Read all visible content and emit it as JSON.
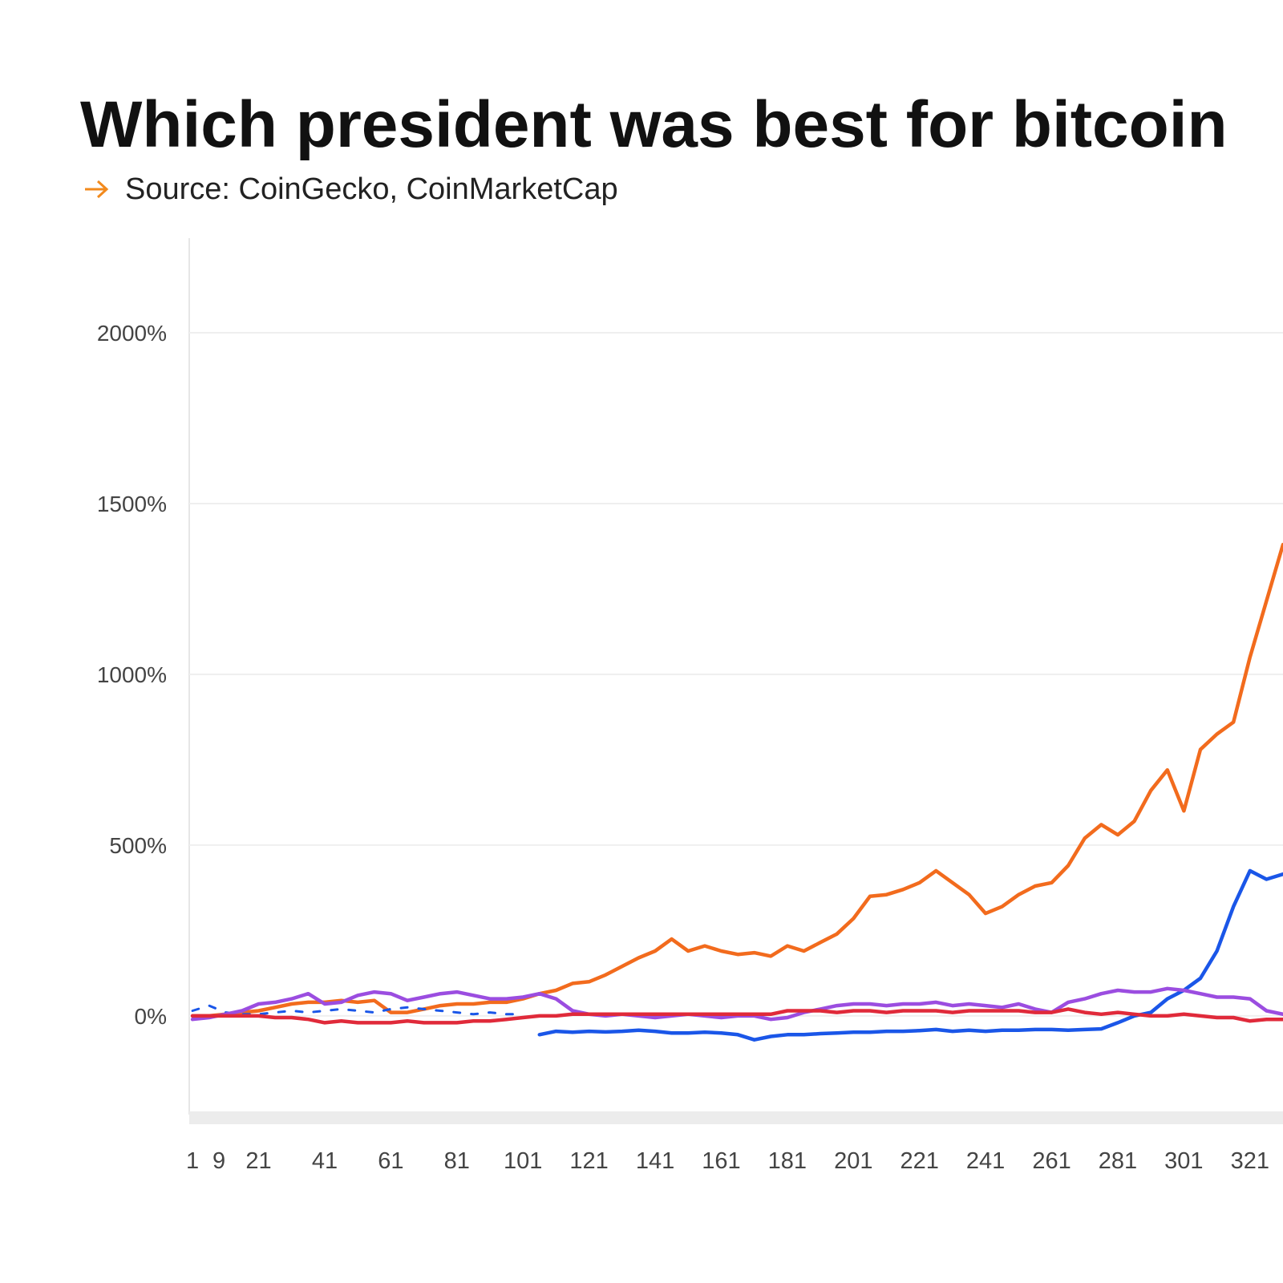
{
  "chart_data": {
    "type": "line",
    "title": "Which president was best for bitcoin",
    "subtitle": "Source: CoinGecko, CoinMarketCap",
    "x": [
      1,
      6,
      11,
      16,
      21,
      26,
      31,
      36,
      41,
      46,
      51,
      56,
      61,
      66,
      71,
      76,
      81,
      86,
      91,
      96,
      101,
      106,
      111,
      116,
      121,
      126,
      131,
      136,
      141,
      146,
      151,
      156,
      161,
      166,
      171,
      176,
      181,
      186,
      191,
      196,
      201,
      206,
      211,
      216,
      221,
      226,
      231,
      236,
      241,
      246,
      251,
      256,
      261,
      266,
      271,
      276,
      281,
      286,
      291,
      296,
      301,
      306,
      311,
      316,
      321,
      326,
      331
    ],
    "series": [
      {
        "color": "#f26b1d",
        "values": [
          0,
          0,
          5,
          10,
          15,
          25,
          35,
          40,
          40,
          45,
          40,
          45,
          10,
          10,
          20,
          30,
          35,
          35,
          40,
          40,
          50,
          65,
          75,
          95,
          100,
          120,
          145,
          170,
          190,
          225,
          190,
          205,
          190,
          180,
          185,
          175,
          205,
          190,
          215,
          240,
          285,
          350,
          355,
          370,
          390,
          425,
          390,
          355,
          300,
          320,
          355,
          380,
          390,
          440,
          520,
          560,
          530,
          570,
          660,
          720,
          600,
          780,
          825,
          860,
          1050,
          1215,
          1380
        ]
      },
      {
        "color": "#1a56e8",
        "values": [
          null,
          null,
          null,
          null,
          null,
          null,
          null,
          null,
          null,
          null,
          null,
          null,
          null,
          null,
          null,
          null,
          null,
          null,
          null,
          null,
          null,
          -55,
          -45,
          -48,
          -45,
          -47,
          -45,
          -42,
          -45,
          -50,
          -50,
          -48,
          -50,
          -55,
          -70,
          -60,
          -55,
          -55,
          -52,
          -50,
          -48,
          -48,
          -45,
          -45,
          -43,
          -40,
          -45,
          -42,
          -45,
          -42,
          -42,
          -40,
          -40,
          -42,
          -40,
          -38,
          -20,
          0,
          10,
          50,
          75,
          110,
          190,
          320,
          425,
          400,
          415
        ]
      },
      {
        "color": "#1a56e8",
        "dashed": true,
        "values": [
          15,
          30,
          10,
          5,
          5,
          10,
          15,
          10,
          15,
          20,
          15,
          10,
          20,
          25,
          20,
          15,
          10,
          5,
          10,
          5,
          5,
          null,
          null,
          null,
          null,
          null,
          null,
          null,
          null,
          null,
          null,
          null,
          null,
          null,
          null,
          null,
          null,
          null,
          null,
          null,
          null,
          null,
          null,
          null,
          null,
          null,
          null,
          null,
          null,
          null,
          null,
          null,
          null,
          null,
          null,
          null,
          null,
          null,
          null,
          null,
          null,
          null,
          null,
          null,
          null,
          null,
          null
        ]
      },
      {
        "color": "#9b4de0",
        "values": [
          -10,
          -5,
          5,
          15,
          35,
          40,
          50,
          65,
          35,
          40,
          60,
          70,
          65,
          45,
          55,
          65,
          70,
          60,
          50,
          50,
          55,
          65,
          50,
          15,
          5,
          0,
          5,
          0,
          -5,
          0,
          5,
          0,
          -5,
          0,
          0,
          -10,
          -5,
          10,
          20,
          30,
          35,
          35,
          30,
          35,
          35,
          40,
          30,
          35,
          30,
          25,
          35,
          20,
          10,
          40,
          50,
          65,
          75,
          70,
          70,
          80,
          75,
          65,
          55,
          55,
          50,
          15,
          5
        ]
      },
      {
        "color": "#e02a3a",
        "values": [
          0,
          0,
          0,
          0,
          0,
          -5,
          -5,
          -10,
          -20,
          -15,
          -20,
          -20,
          -20,
          -15,
          -20,
          -20,
          -20,
          -15,
          -15,
          -10,
          -5,
          0,
          0,
          5,
          5,
          5,
          5,
          5,
          5,
          5,
          5,
          5,
          5,
          5,
          5,
          5,
          15,
          15,
          15,
          10,
          15,
          15,
          10,
          15,
          15,
          15,
          10,
          15,
          15,
          15,
          15,
          10,
          10,
          20,
          10,
          5,
          10,
          5,
          0,
          0,
          5,
          0,
          -5,
          -5,
          -15,
          -10,
          -10
        ]
      }
    ],
    "xlim": [
      0,
      331
    ],
    "xticks": [
      1,
      9,
      21,
      41,
      61,
      81,
      101,
      121,
      141,
      161,
      181,
      201,
      221,
      241,
      261,
      281,
      301,
      321
    ],
    "ylim": [
      -289,
      2277
    ],
    "yticks": [
      {
        "value": 0,
        "label": "0%"
      },
      {
        "value": 500,
        "label": "500%"
      },
      {
        "value": 1000,
        "label": "1000%"
      },
      {
        "value": 1500,
        "label": "1500%"
      },
      {
        "value": 2000,
        "label": "2000%"
      }
    ],
    "grid": true
  }
}
